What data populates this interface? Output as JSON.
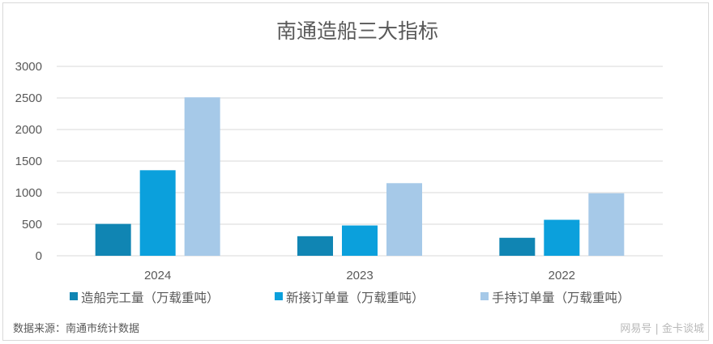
{
  "chart_data": {
    "type": "bar",
    "title": "南通造船三大指标",
    "categories": [
      "2024",
      "2023",
      "2022"
    ],
    "series": [
      {
        "name": "造船完工量（万载重吨）",
        "color": "#1085b3",
        "values": [
          505,
          310,
          285
        ]
      },
      {
        "name": "新接订单量（万载重吨）",
        "color": "#0ba0dc",
        "values": [
          1355,
          480,
          570
        ]
      },
      {
        "name": "手持订单量（万载重吨）",
        "color": "#a6c9e8",
        "values": [
          2510,
          1150,
          990
        ]
      }
    ],
    "ylim": [
      0,
      3000
    ],
    "yticks": [
      0,
      500,
      1000,
      1500,
      2000,
      2500,
      3000
    ],
    "grid": true,
    "legend_position": "bottom"
  },
  "source_note": "数据来源：南通市统计数据",
  "watermark": "网易号 | 金卡谈城"
}
